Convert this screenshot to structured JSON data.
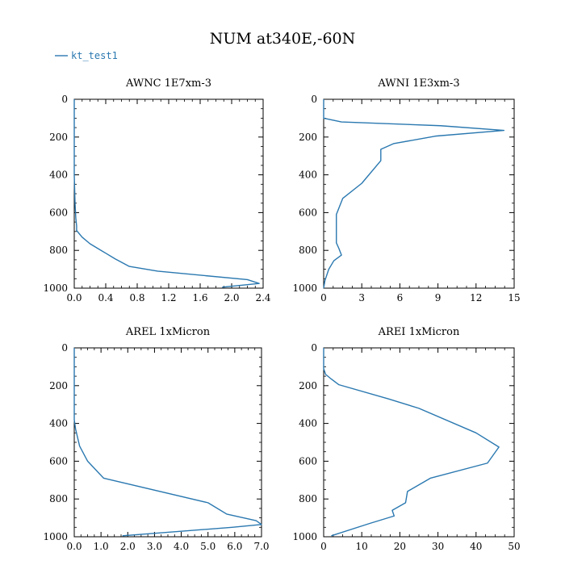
{
  "figure_title": "NUM at340E,-60N",
  "legend": {
    "label": "kt_test1",
    "color": "#2a78b0"
  },
  "chart_data": [
    {
      "type": "line",
      "title": "AWNC  1E7xm-3",
      "xlim": [
        0,
        2.4
      ],
      "ylim": [
        1000,
        0
      ],
      "xticks": [
        0,
        0.4,
        0.8,
        1.2,
        1.6,
        2.0,
        2.4
      ],
      "xtick_labels": [
        "0.0",
        "0.4",
        "0.8",
        "1.2",
        "1.6",
        "2.0",
        "2.4"
      ],
      "yticks": [
        0,
        200,
        400,
        600,
        800,
        1000
      ],
      "ytick_labels": [
        "0",
        "200",
        "400",
        "600",
        "800",
        "1000"
      ],
      "series": [
        {
          "x": [
            0,
            0,
            0.01,
            0.02,
            0.03,
            0.03,
            0.1,
            0.2,
            0.3,
            0.4,
            0.52,
            0.7,
            1.06,
            2.2,
            2.35,
            1.88
          ],
          "y": [
            0,
            400,
            550,
            630,
            670,
            695,
            730,
            765,
            790,
            815,
            845,
            885,
            910,
            955,
            975,
            995
          ]
        }
      ]
    },
    {
      "type": "line",
      "title": "AWNI  1E3xm-3",
      "xlim": [
        0,
        15
      ],
      "ylim": [
        1000,
        0
      ],
      "xticks": [
        0,
        3,
        6,
        9,
        12,
        15
      ],
      "xtick_labels": [
        "0",
        "3",
        "6",
        "9",
        "12",
        "15"
      ],
      "yticks": [
        0,
        200,
        400,
        600,
        800,
        1000
      ],
      "ytick_labels": [
        "0",
        "200",
        "400",
        "600",
        "800",
        "1000"
      ],
      "series": [
        {
          "x": [
            0,
            0,
            1.4,
            9.2,
            14.2,
            8.8,
            5.5,
            4.5,
            4.5,
            3.0,
            1.5,
            1.0,
            1.0,
            1.0,
            1.2,
            1.4,
            0.8,
            0.4,
            0.1,
            0
          ],
          "y": [
            0,
            100,
            120,
            140,
            165,
            195,
            235,
            265,
            325,
            445,
            525,
            610,
            690,
            760,
            790,
            825,
            855,
            900,
            960,
            1000
          ]
        }
      ]
    },
    {
      "type": "line",
      "title": "AREL  1xMicron",
      "xlim": [
        0,
        7.0
      ],
      "ylim": [
        1000,
        0
      ],
      "xticks": [
        0,
        1,
        2,
        3,
        4,
        5,
        6,
        7
      ],
      "xtick_labels": [
        "0.0",
        "1.0",
        "2.0",
        "3.0",
        "4.0",
        "5.0",
        "6.0",
        "7.0"
      ],
      "yticks": [
        0,
        200,
        400,
        600,
        800,
        1000
      ],
      "ytick_labels": [
        "0",
        "200",
        "400",
        "600",
        "800",
        "1000"
      ],
      "series": [
        {
          "x": [
            0,
            0,
            0.05,
            0.2,
            0.5,
            1.1,
            5.0,
            5.7,
            6.8,
            7.0,
            5.9,
            1.8
          ],
          "y": [
            0,
            380,
            430,
            520,
            600,
            690,
            820,
            880,
            915,
            935,
            950,
            995
          ]
        }
      ]
    },
    {
      "type": "line",
      "title": "AREI  1xMicron",
      "xlim": [
        0,
        50
      ],
      "ylim": [
        1000,
        0
      ],
      "xticks": [
        0,
        10,
        20,
        30,
        40,
        50
      ],
      "xtick_labels": [
        "0",
        "10",
        "20",
        "30",
        "40",
        "50"
      ],
      "yticks": [
        0,
        200,
        400,
        600,
        800,
        1000
      ],
      "ytick_labels": [
        "0",
        "200",
        "400",
        "600",
        "800",
        "1000"
      ],
      "series": [
        {
          "x": [
            0,
            0,
            0.5,
            2,
            4,
            17,
            25,
            40,
            46,
            43,
            28,
            22,
            21.5,
            18,
            18.5,
            12,
            2
          ],
          "y": [
            0,
            110,
            140,
            165,
            195,
            270,
            320,
            450,
            525,
            610,
            690,
            760,
            820,
            860,
            890,
            930,
            995
          ]
        }
      ]
    }
  ]
}
